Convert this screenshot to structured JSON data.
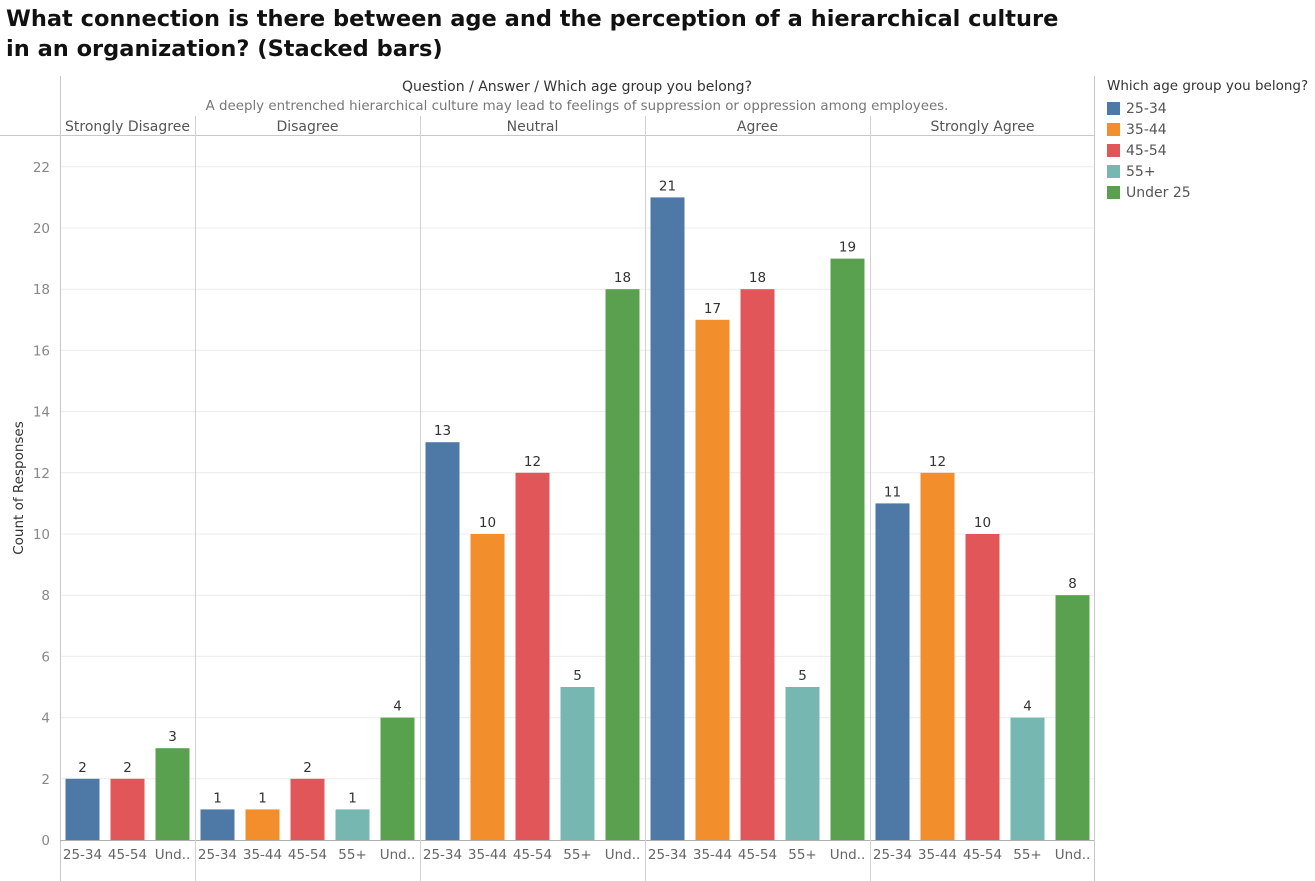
{
  "title": "What connection is there between age and the perception of a hierarchical culture in an organization? (Stacked bars)",
  "chart_data": {
    "type": "bar",
    "header": "Question  /  Answer  /  Which age group you belong?",
    "question": "A deeply entrenched hierarchical culture may lead to feelings of suppression or oppression among employees.",
    "ylabel": "Count of Responses",
    "ylim": [
      0,
      23
    ],
    "yticks": [
      0,
      2,
      4,
      6,
      8,
      10,
      12,
      14,
      16,
      18,
      20,
      22
    ],
    "grid": true,
    "legend_title": "Which age group you belong?",
    "legend_position": "right",
    "series": [
      {
        "name": "25-34",
        "color": "#4e79a7"
      },
      {
        "name": "35-44",
        "color": "#f28e2b"
      },
      {
        "name": "45-54",
        "color": "#e15759"
      },
      {
        "name": "55+",
        "color": "#76b7b2"
      },
      {
        "name": "Under 25",
        "color": "#59a14f"
      }
    ],
    "panels": [
      {
        "name": "Strongly Disagree",
        "bars": [
          {
            "group": "25-34",
            "label": "25-34",
            "value": 2
          },
          {
            "group": "45-54",
            "label": "45-54",
            "value": 2
          },
          {
            "group": "Under 25",
            "label": "Und..",
            "value": 3
          }
        ]
      },
      {
        "name": "Disagree",
        "bars": [
          {
            "group": "25-34",
            "label": "25-34",
            "value": 1
          },
          {
            "group": "35-44",
            "label": "35-44",
            "value": 1
          },
          {
            "group": "45-54",
            "label": "45-54",
            "value": 2
          },
          {
            "group": "55+",
            "label": "55+",
            "value": 1
          },
          {
            "group": "Under 25",
            "label": "Und..",
            "value": 4
          }
        ]
      },
      {
        "name": "Neutral",
        "bars": [
          {
            "group": "25-34",
            "label": "25-34",
            "value": 13
          },
          {
            "group": "35-44",
            "label": "35-44",
            "value": 10
          },
          {
            "group": "45-54",
            "label": "45-54",
            "value": 12
          },
          {
            "group": "55+",
            "label": "55+",
            "value": 5
          },
          {
            "group": "Under 25",
            "label": "Und..",
            "value": 18
          }
        ]
      },
      {
        "name": "Agree",
        "bars": [
          {
            "group": "25-34",
            "label": "25-34",
            "value": 21
          },
          {
            "group": "35-44",
            "label": "35-44",
            "value": 17
          },
          {
            "group": "45-54",
            "label": "45-54",
            "value": 18
          },
          {
            "group": "55+",
            "label": "55+",
            "value": 5
          },
          {
            "group": "Under 25",
            "label": "Und..",
            "value": 19
          }
        ]
      },
      {
        "name": "Strongly Agree",
        "bars": [
          {
            "group": "25-34",
            "label": "25-34",
            "value": 11
          },
          {
            "group": "35-44",
            "label": "35-44",
            "value": 12
          },
          {
            "group": "45-54",
            "label": "45-54",
            "value": 10
          },
          {
            "group": "55+",
            "label": "55+",
            "value": 4
          },
          {
            "group": "Under 25",
            "label": "Und..",
            "value": 8
          }
        ]
      }
    ]
  }
}
